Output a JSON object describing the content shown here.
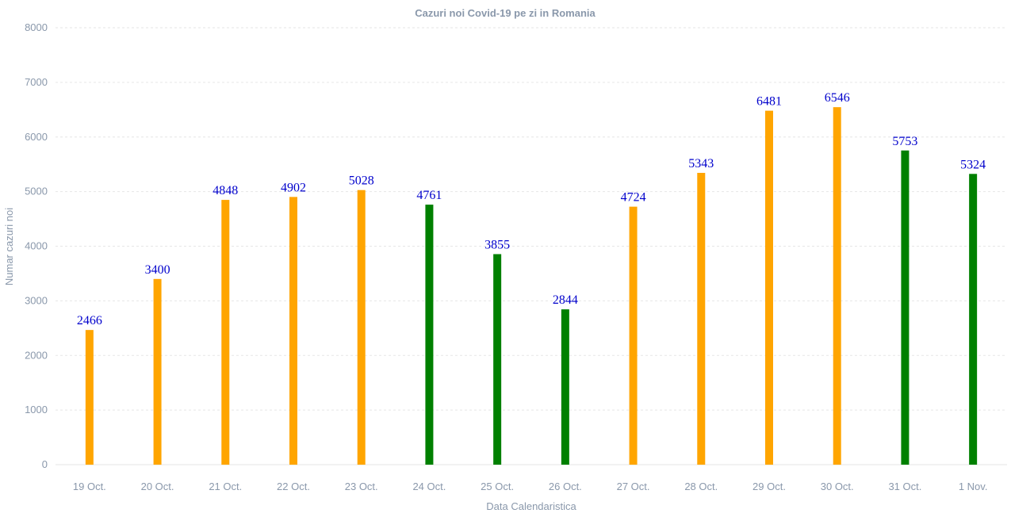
{
  "chart_data": {
    "type": "bar",
    "title": "Cazuri noi Covid-19 pe zi in Romania",
    "xlabel": "Data Calendaristica",
    "ylabel": "Numar cazuri noi",
    "ylim": [
      0,
      8000
    ],
    "yticks": [
      0,
      1000,
      2000,
      3000,
      4000,
      5000,
      6000,
      7000,
      8000
    ],
    "grid": true,
    "categories": [
      "19 Oct.",
      "20 Oct.",
      "21 Oct.",
      "22 Oct.",
      "23 Oct.",
      "24 Oct.",
      "25 Oct.",
      "26 Oct.",
      "27 Oct.",
      "28 Oct.",
      "29 Oct.",
      "30 Oct.",
      "31 Oct.",
      "1 Nov."
    ],
    "values": [
      2466,
      3400,
      4848,
      4902,
      5028,
      4761,
      3855,
      2844,
      4724,
      5343,
      6481,
      6546,
      5753,
      5324
    ],
    "colors": [
      "#ffa500",
      "#ffa500",
      "#ffa500",
      "#ffa500",
      "#ffa500",
      "#008000",
      "#008000",
      "#008000",
      "#ffa500",
      "#ffa500",
      "#ffa500",
      "#ffa500",
      "#008000",
      "#008000"
    ],
    "data_label_color": "#0000cc"
  }
}
